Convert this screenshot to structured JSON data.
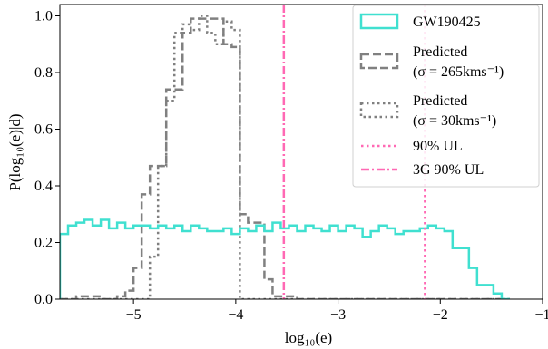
{
  "chart_data": {
    "type": "line",
    "xlabel": "log₁₀(e)",
    "ylabel": "P(log₁₀(e)|d)",
    "xlim": [
      -5.72,
      -1.0
    ],
    "ylim": [
      0.0,
      1.04
    ],
    "xticks": [
      -5,
      -4,
      -3,
      -2,
      -1
    ],
    "xtick_labels": [
      "−5",
      "−4",
      "−3",
      "−2",
      "−1"
    ],
    "yticks": [
      0.0,
      0.2,
      0.4,
      0.6,
      0.8,
      1.0
    ],
    "ytick_labels": [
      "0.0",
      "0.2",
      "0.4",
      "0.6",
      "0.8",
      "1.0"
    ],
    "grid": false,
    "legend_position": "top-right",
    "colors": {
      "gw": "#40e0d0",
      "predicted": "#808080",
      "ul": "#ff69b4"
    },
    "bin_edges": [
      -5.72,
      -5.64,
      -5.56,
      -5.48,
      -5.4,
      -5.32,
      -5.24,
      -5.16,
      -5.08,
      -5.0,
      -4.92,
      -4.84,
      -4.76,
      -4.68,
      -4.6,
      -4.52,
      -4.44,
      -4.36,
      -4.28,
      -4.2,
      -4.12,
      -4.04,
      -3.96,
      -3.88,
      -3.8,
      -3.72,
      -3.64,
      -3.56,
      -3.48,
      -3.4,
      -3.32,
      -3.24,
      -3.16,
      -3.08,
      -3.0,
      -2.92,
      -2.84,
      -2.76,
      -2.68,
      -2.6,
      -2.52,
      -2.44,
      -2.36,
      -2.28,
      -2.2,
      -2.12,
      -2.04,
      -1.96,
      -1.88,
      -1.8,
      -1.72,
      -1.64,
      -1.56,
      -1.48,
      -1.4,
      -1.32
    ],
    "series": [
      {
        "name": "GW190425",
        "style": "solid",
        "values": [
          0.23,
          0.26,
          0.27,
          0.28,
          0.26,
          0.28,
          0.25,
          0.27,
          0.25,
          0.26,
          0.26,
          0.25,
          0.26,
          0.25,
          0.26,
          0.24,
          0.26,
          0.25,
          0.24,
          0.24,
          0.25,
          0.23,
          0.25,
          0.24,
          0.26,
          0.24,
          0.27,
          0.25,
          0.26,
          0.24,
          0.26,
          0.25,
          0.24,
          0.26,
          0.24,
          0.26,
          0.25,
          0.22,
          0.24,
          0.26,
          0.25,
          0.23,
          0.24,
          0.24,
          0.25,
          0.26,
          0.25,
          0.24,
          0.18,
          0.18,
          0.11,
          0.05,
          0.05,
          0.02,
          0.0
        ]
      },
      {
        "name_lines": [
          "Predicted",
          "(σ = 265kms⁻¹)"
        ],
        "style": "dashed",
        "values": [
          0.0,
          0.0,
          0.01,
          0.01,
          0.01,
          0.0,
          0.0,
          0.01,
          0.03,
          0.11,
          0.37,
          0.47,
          0.47,
          0.74,
          0.74,
          0.94,
          0.99,
          0.99,
          0.99,
          0.99,
          0.9,
          0.89,
          0.3,
          0.27,
          0.27,
          0.07,
          0.01,
          0.01,
          0.01,
          0.0,
          0.0,
          0.0,
          0.0,
          0.0,
          0.0,
          0.0,
          0.0,
          0.0,
          0.0,
          0.0,
          0.0,
          0.0,
          0.0,
          0.0,
          0.0,
          0.0,
          0.0,
          0.0,
          0.0,
          0.0,
          0.0,
          0.0,
          0.0,
          0.0,
          0.0
        ]
      },
      {
        "name_lines": [
          "Predicted",
          "(σ = 30kms⁻¹)"
        ],
        "style": "dotted",
        "values": [
          0.0,
          0.0,
          0.0,
          0.0,
          0.0,
          0.0,
          0.0,
          0.0,
          0.0,
          0.0,
          0.0,
          0.15,
          0.47,
          0.7,
          0.94,
          0.97,
          0.95,
          1.0,
          0.94,
          0.9,
          0.98,
          0.95,
          0.0,
          0.0,
          0.0,
          0.0,
          0.0,
          0.0,
          0.0,
          0.0,
          0.0,
          0.0,
          0.0,
          0.0,
          0.0,
          0.0,
          0.0,
          0.0,
          0.0,
          0.0,
          0.0,
          0.0,
          0.0,
          0.0,
          0.0,
          0.0,
          0.0,
          0.0,
          0.0,
          0.0,
          0.0,
          0.0,
          0.0,
          0.0,
          0.0
        ]
      }
    ],
    "vlines": [
      {
        "name": "90% UL",
        "x": -2.15,
        "style": "dotted"
      },
      {
        "name": "3G 90% UL",
        "x": -3.53,
        "style": "dashdot"
      }
    ],
    "legend": {
      "gw": "GW190425",
      "pred265_line1": "Predicted",
      "pred265_line2": "(σ = 265kms⁻¹)",
      "pred30_line1": "Predicted",
      "pred30_line2": "(σ = 30kms⁻¹)",
      "ul": "90% UL",
      "ul3g": "3G 90% UL"
    }
  }
}
